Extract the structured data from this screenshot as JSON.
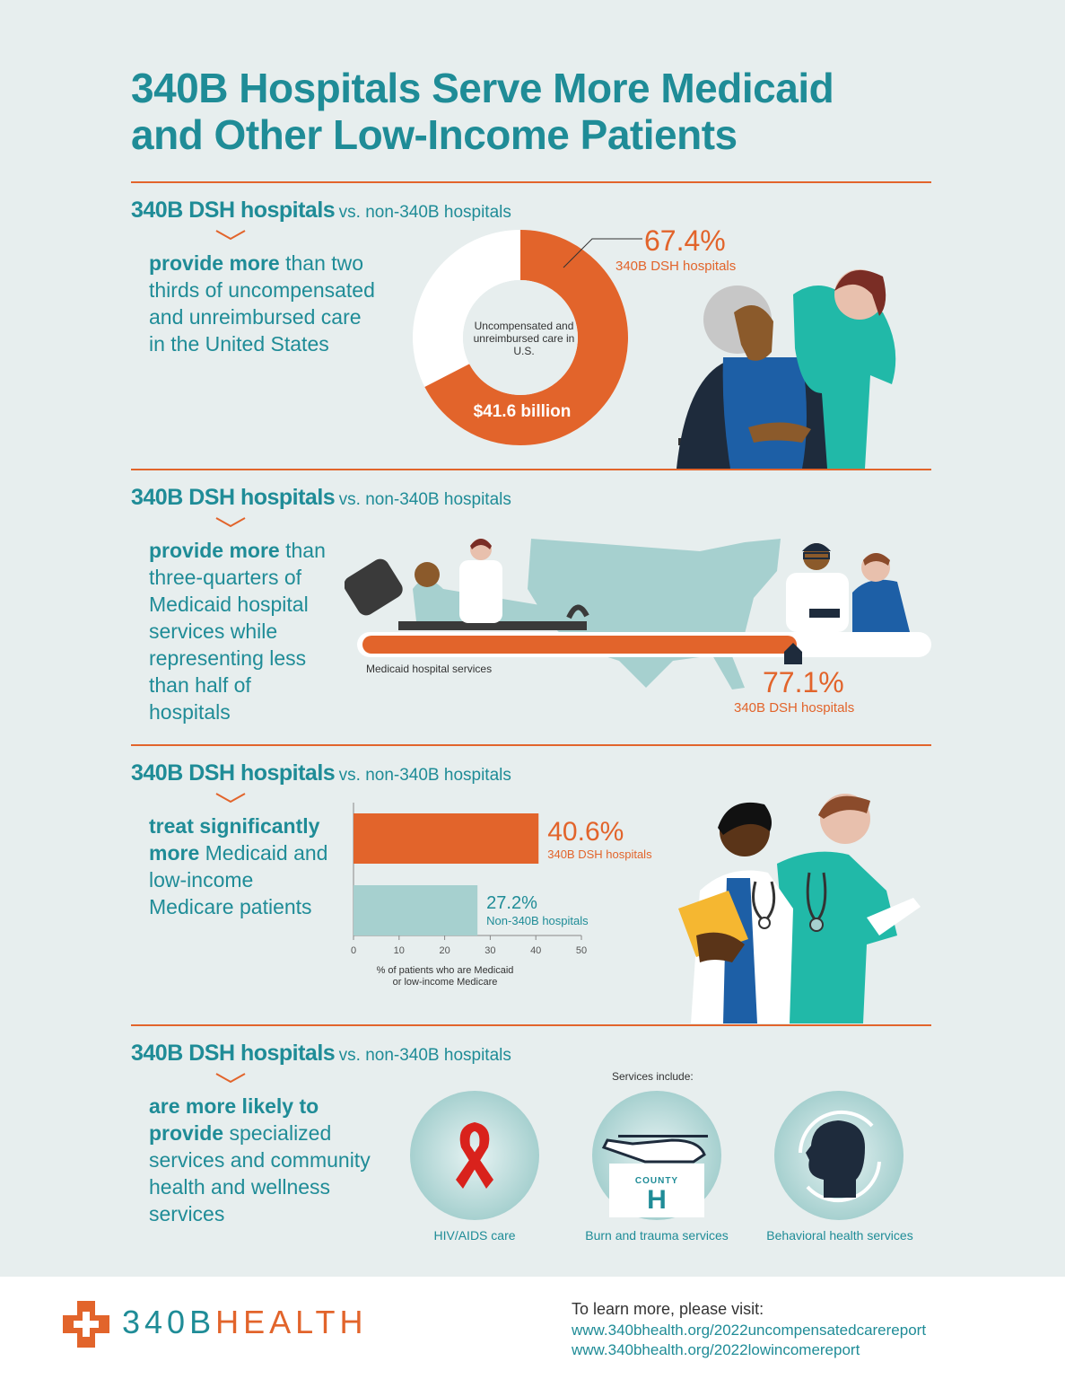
{
  "title_line1": "340B Hospitals Serve More Medicaid",
  "title_line2": "and Other Low-Income Patients",
  "section1": {
    "head_strong": "340B DSH hospitals",
    "head_light": "vs. non-340B hospitals",
    "body_bold": "provide more",
    "body_rest": "than two thirds of uncompensated and unreimbursed care in the United States",
    "donut_center": "Uncompensated and unreimbursed care in U.S.",
    "donut_amount": "$41.6 billion",
    "pct": "67.4%",
    "pct_label": "340B DSH hospitals",
    "share": 0.674
  },
  "section2": {
    "head_strong": "340B DSH hospitals",
    "head_light": "vs. non-340B hospitals",
    "body_bold": "provide more",
    "body_rest": "than three-quarters of Medicaid hospital services while representing less than half of hospitals",
    "bar_label": "Medicaid hospital services",
    "pct": "77.1%",
    "pct_label": "340B DSH hospitals",
    "share": 0.771
  },
  "section3": {
    "head_strong": "340B DSH hospitals",
    "head_light": "vs. non-340B hospitals",
    "body_bold1": "treat significantly",
    "body_bold2": "more",
    "body_rest": "Medicaid and low-income Medicare patients",
    "axis_title": "% of patients who are Medicaid or low-income Medicare",
    "ticks": [
      "0",
      "10",
      "20",
      "30",
      "40",
      "50"
    ]
  },
  "chart_data": {
    "type": "bar",
    "orientation": "horizontal",
    "categories": [
      "340B DSH hospitals",
      "Non-340B hospitals"
    ],
    "values": [
      40.6,
      27.2
    ],
    "value_labels": [
      "40.6%",
      "27.2%"
    ],
    "xlabel": "% of patients who are Medicaid or low-income Medicare",
    "xlim": [
      0,
      50
    ],
    "colors": [
      "#e2642b",
      "#a6d0cf"
    ]
  },
  "section4": {
    "head_strong": "340B DSH hospitals",
    "head_light": "vs. non-340B hospitals",
    "body_bold": "are more likely to provide",
    "body_rest": "specialized services and community health and wellness services",
    "services_title": "Services include:",
    "services": [
      {
        "label": "HIV/AIDS care",
        "icon": "ribbon-icon"
      },
      {
        "label": "Burn and trauma services",
        "icon": "helicopter-hospital-icon"
      },
      {
        "label": "Behavioral health services",
        "icon": "head-icon"
      }
    ],
    "county_sign": "COUNTY",
    "county_letter": "H"
  },
  "footer": {
    "logo_text_1": "340B",
    "logo_text_2": "HEALTH",
    "learn_more": "To learn more, please visit:",
    "link1": "www.340bhealth.org/2022uncompensatedcarereport",
    "link2": "www.340bhealth.org/2022lowincomereport"
  },
  "colors": {
    "teal": "#1f8c97",
    "orange": "#e2642b",
    "light_teal": "#a6d0cf",
    "background": "#e7eeee"
  }
}
